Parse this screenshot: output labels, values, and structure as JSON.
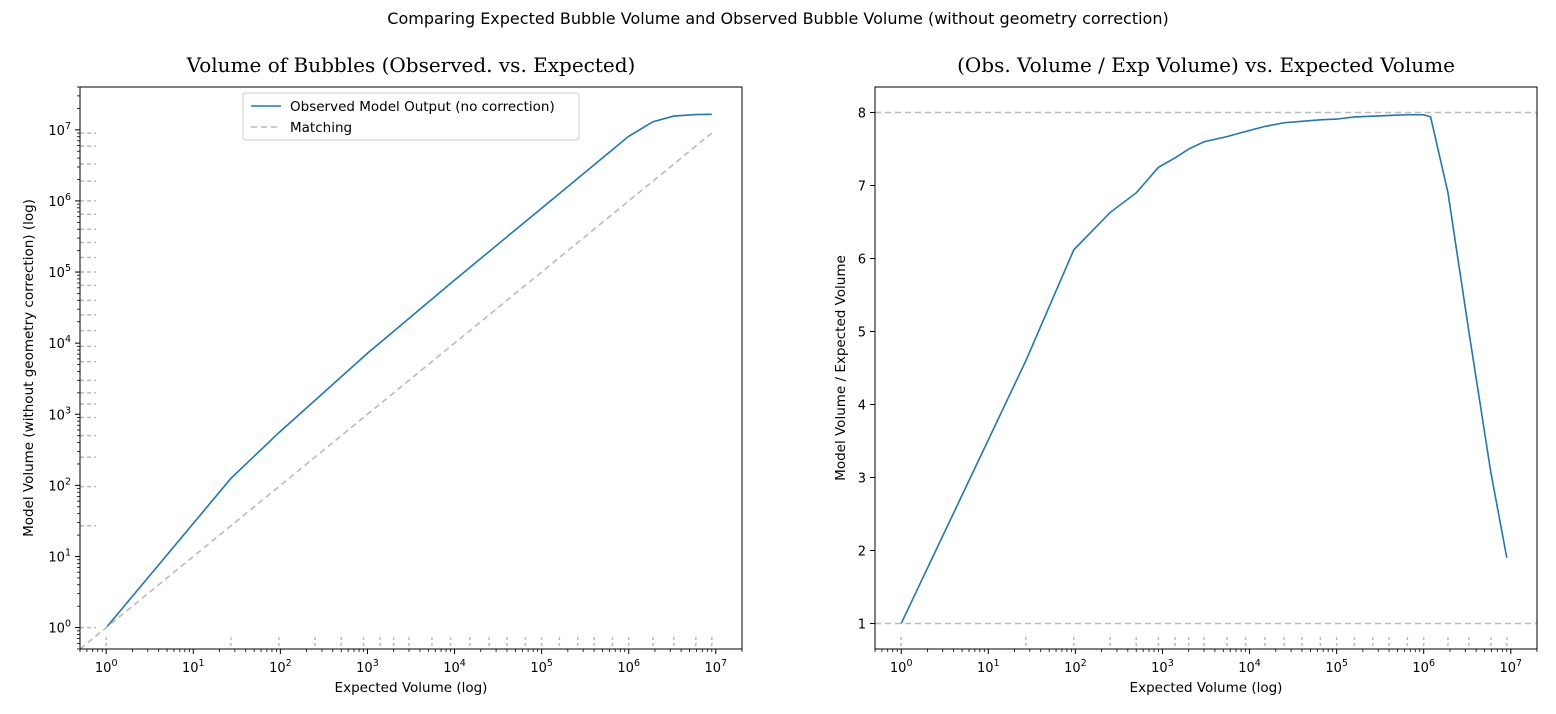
{
  "figure": {
    "suptitle": "Comparing Expected Bubble Volume and Observed Bubble Volume (without geometry correction)"
  },
  "colors": {
    "series": "#1f77b4",
    "reference": "#bbbbbb"
  },
  "chart_data": [
    {
      "type": "line",
      "title": "Volume of Bubbles (Observed. vs. Expected)",
      "xlabel": "Expected Volume (log)",
      "ylabel": "Model Volume (without geometry correction) (log)",
      "xscale": "log",
      "yscale": "log",
      "xlim": [
        0.5,
        20000000
      ],
      "ylim": [
        0.5,
        40000000
      ],
      "xticks": [
        {
          "v": 1,
          "label": "10^0"
        },
        {
          "v": 10,
          "label": "10^1"
        },
        {
          "v": 100,
          "label": "10^2"
        },
        {
          "v": 1000,
          "label": "10^3"
        },
        {
          "v": 10000,
          "label": "10^4"
        },
        {
          "v": 100000,
          "label": "10^5"
        },
        {
          "v": 1000000,
          "label": "10^6"
        },
        {
          "v": 10000000,
          "label": "10^7"
        }
      ],
      "yticks": [
        {
          "v": 1,
          "label": "10^0"
        },
        {
          "v": 10,
          "label": "10^1"
        },
        {
          "v": 100,
          "label": "10^2"
        },
        {
          "v": 1000,
          "label": "10^3"
        },
        {
          "v": 10000,
          "label": "10^4"
        },
        {
          "v": 100000,
          "label": "10^5"
        },
        {
          "v": 1000000,
          "label": "10^6"
        },
        {
          "v": 10000000,
          "label": "10^7"
        }
      ],
      "legend": {
        "loc": "upper center"
      },
      "series": [
        {
          "name": "Observed Model Output (no correction)",
          "style": "solid",
          "x": [
            1,
            27,
            96,
            1000,
            10000,
            100000,
            1000000,
            1900000,
            3300000,
            5900000,
            9000000
          ],
          "y": [
            1,
            125,
            550,
            7200,
            77000,
            790000,
            8100000,
            13000000,
            15600000,
            16400000,
            16500000
          ]
        },
        {
          "name": "Matching",
          "style": "dashed",
          "x": [
            0.5,
            9000000
          ],
          "y": [
            0.5,
            9000000
          ]
        }
      ],
      "markers": {
        "x": [
          1,
          27,
          96,
          250,
          500,
          900,
          1400,
          2000,
          3000,
          5500,
          9000,
          15000,
          25000,
          40000,
          65000,
          100000,
          160000,
          260000,
          400000,
          650000,
          1000000,
          1900000,
          3300000,
          5900000,
          9000000
        ],
        "y": [
          1,
          27,
          96,
          250,
          500,
          900,
          1400,
          2000,
          3000,
          5500,
          9000,
          15000,
          25000,
          40000,
          65000,
          100000,
          160000,
          260000,
          400000,
          650000,
          1000000,
          1900000,
          3300000,
          5900000,
          9000000
        ]
      }
    },
    {
      "type": "line",
      "title": "(Obs. Volume / Exp Volume) vs. Expected Volume",
      "xlabel": "Expected Volume (log)",
      "ylabel": "Model Volume / Expected Volume",
      "xscale": "log",
      "yscale": "linear",
      "xlim": [
        0.5,
        20000000
      ],
      "ylim": [
        0.65,
        8.35
      ],
      "xticks": [
        {
          "v": 1,
          "label": "10^0"
        },
        {
          "v": 10,
          "label": "10^1"
        },
        {
          "v": 100,
          "label": "10^2"
        },
        {
          "v": 1000,
          "label": "10^3"
        },
        {
          "v": 10000,
          "label": "10^4"
        },
        {
          "v": 100000,
          "label": "10^5"
        },
        {
          "v": 1000000,
          "label": "10^6"
        },
        {
          "v": 10000000,
          "label": "10^7"
        }
      ],
      "yticks": [
        {
          "v": 1,
          "label": "1"
        },
        {
          "v": 2,
          "label": "2"
        },
        {
          "v": 3,
          "label": "3"
        },
        {
          "v": 4,
          "label": "4"
        },
        {
          "v": 5,
          "label": "5"
        },
        {
          "v": 6,
          "label": "6"
        },
        {
          "v": 7,
          "label": "7"
        },
        {
          "v": 8,
          "label": "8"
        }
      ],
      "series": [
        {
          "name": "",
          "style": "solid",
          "x": [
            1,
            27,
            96,
            250,
            500,
            900,
            1400,
            2000,
            3000,
            5500,
            9000,
            15000,
            25000,
            40000,
            65000,
            100000,
            160000,
            260000,
            400000,
            650000,
            1000000,
            1200000,
            1900000,
            3300000,
            5900000,
            9000000
          ],
          "y": [
            1.0,
            4.6,
            6.12,
            6.63,
            6.9,
            7.25,
            7.38,
            7.5,
            7.6,
            7.67,
            7.74,
            7.81,
            7.86,
            7.88,
            7.9,
            7.91,
            7.94,
            7.95,
            7.96,
            7.97,
            7.97,
            7.94,
            6.9,
            5.0,
            3.07,
            1.9
          ]
        }
      ],
      "hlines": [
        1,
        8
      ],
      "markers": {
        "x": [
          1,
          27,
          96,
          250,
          500,
          900,
          1400,
          2000,
          3000,
          5500,
          9000,
          15000,
          25000,
          40000,
          65000,
          100000,
          160000,
          260000,
          400000,
          650000,
          1000000,
          1900000,
          3300000,
          5900000,
          9000000
        ]
      }
    }
  ]
}
